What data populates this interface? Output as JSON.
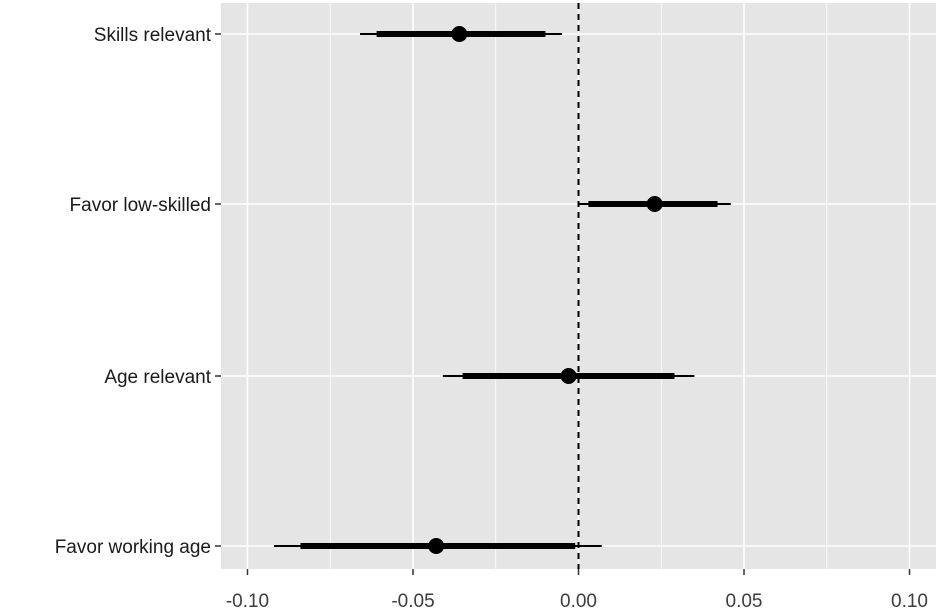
{
  "chart_data": {
    "type": "scatter",
    "subtype": "coefficient-plot",
    "title": "",
    "xlabel": "",
    "ylabel": "",
    "xlim": [
      -0.108,
      0.108
    ],
    "x_ticks": [
      -0.1,
      -0.05,
      0.0,
      0.05,
      0.1
    ],
    "x_tick_labels": [
      "-0.10",
      "-0.05",
      "0.00",
      "0.05",
      "0.10"
    ],
    "reference_line": {
      "x": 0.0,
      "style": "dashed"
    },
    "grid": true,
    "legend": "none",
    "categories": [
      "Skills relevant",
      "Favor low-skilled",
      "Age relevant",
      "Favor working age"
    ],
    "estimates": [
      -0.036,
      0.023,
      -0.003,
      -0.043
    ],
    "inner_interval": [
      [
        -0.061,
        -0.01
      ],
      [
        0.003,
        0.042
      ],
      [
        -0.035,
        0.029
      ],
      [
        -0.084,
        -0.001
      ]
    ],
    "outer_interval": [
      [
        -0.066,
        -0.005
      ],
      [
        0.0,
        0.046
      ],
      [
        -0.041,
        0.035
      ],
      [
        -0.092,
        0.007
      ]
    ],
    "colors": {
      "panel": "#e5e5e5",
      "grid": "#ffffff",
      "marks": "#000000"
    }
  }
}
